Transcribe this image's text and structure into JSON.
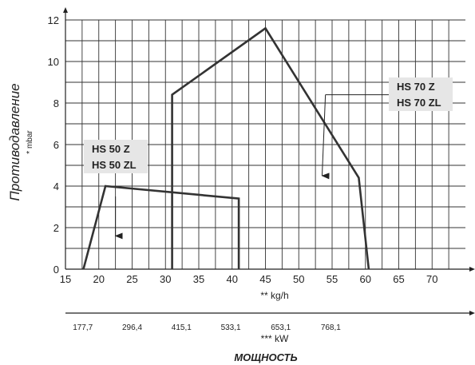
{
  "chart_data": {
    "type": "line",
    "ylabel": "Противодавление",
    "yunit": "* mbar",
    "xunit": "** kg/h",
    "kw_unit": "*** kW",
    "bottom_label": "МОЩНОСТЬ",
    "xlim": [
      15,
      75
    ],
    "ylim": [
      0,
      12
    ],
    "grid": true,
    "x_ticks": [
      15,
      20,
      25,
      30,
      35,
      40,
      45,
      50,
      55,
      60,
      65,
      70
    ],
    "y_ticks": [
      0,
      2,
      4,
      6,
      8,
      10,
      12
    ],
    "kw_ticks": [
      {
        "x": 17.6,
        "label": "177,7"
      },
      {
        "x": 25,
        "label": "296,4"
      },
      {
        "x": 32.4,
        "label": "415,1"
      },
      {
        "x": 39.8,
        "label": "533,1"
      },
      {
        "x": 47.3,
        "label": "653,1"
      },
      {
        "x": 54.8,
        "label": "768,1"
      }
    ],
    "series": [
      {
        "name": "HS 50 Z / HS 50 ZL",
        "label_lines": [
          "HS 50 Z",
          "HS 50 ZL"
        ],
        "points": [
          [
            17.7,
            0
          ],
          [
            21,
            4
          ],
          [
            41,
            3.4
          ],
          [
            41,
            0
          ]
        ],
        "arrow": [
          [
            22.5,
            3.5
          ],
          [
            22.5,
            1.6
          ]
        ]
      },
      {
        "name": "HS 70 Z / HS 70 ZL",
        "label_lines": [
          "HS 70 Z",
          "HS 70 ZL"
        ],
        "points": [
          [
            31,
            0
          ],
          [
            31,
            8.4
          ],
          [
            45,
            11.6
          ],
          [
            59,
            4.4
          ],
          [
            60.5,
            0
          ]
        ],
        "arrow": [
          [
            54,
            8.4
          ],
          [
            53.5,
            4.5
          ]
        ]
      }
    ]
  }
}
